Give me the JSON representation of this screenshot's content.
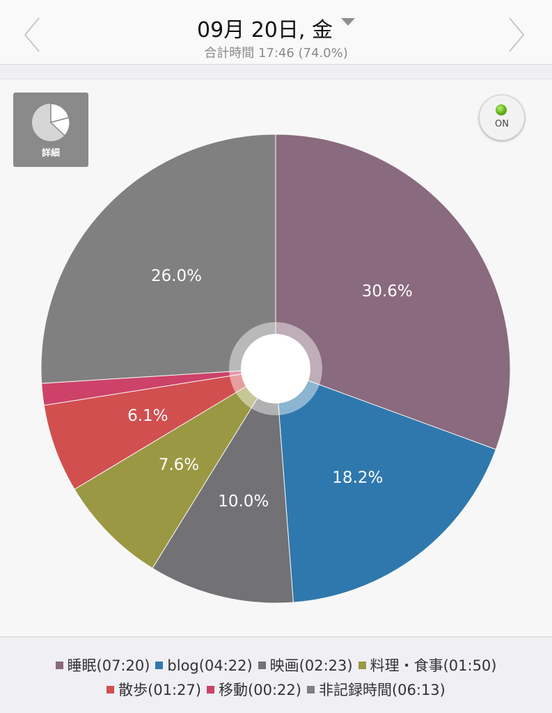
{
  "header": {
    "date": "09月 20日, 金",
    "total": "合計時間 17:46 (74.0%)"
  },
  "detail_button": {
    "label": "詳細"
  },
  "toggle": {
    "label": "ON"
  },
  "chart_data": {
    "type": "pie",
    "slices": [
      {
        "name": "睡眠",
        "duration": "07:20",
        "percent": 30.6,
        "label": "30.6%",
        "color": "#8a6a7e"
      },
      {
        "name": "blog",
        "duration": "04:22",
        "percent": 18.2,
        "label": "18.2%",
        "color": "#2f78ad"
      },
      {
        "name": "映画",
        "duration": "02:23",
        "percent": 10.0,
        "label": "10.0%",
        "color": "#727276"
      },
      {
        "name": "料理・食事",
        "duration": "01:50",
        "percent": 7.6,
        "label": "7.6%",
        "color": "#9a9843"
      },
      {
        "name": "散歩",
        "duration": "01:27",
        "percent": 6.1,
        "label": "6.1%",
        "color": "#d24f50"
      },
      {
        "name": "移動",
        "duration": "00:22",
        "percent": 1.5,
        "label": "",
        "color": "#cd4268"
      },
      {
        "name": "非記録時間",
        "duration": "06:13",
        "percent": 26.0,
        "label": "26.0%",
        "color": "#808080"
      }
    ]
  },
  "legend": {
    "items": [
      {
        "text": "睡眠(07:20)",
        "color": "#8a6a7e"
      },
      {
        "text": "blog(04:22)",
        "color": "#2f78ad"
      },
      {
        "text": "映画(02:23)",
        "color": "#727276"
      },
      {
        "text": "料理・食事(01:50)",
        "color": "#9a9843"
      },
      {
        "text": "散歩(01:27)",
        "color": "#d24f50"
      },
      {
        "text": "移動(00:22)",
        "color": "#cd4268"
      },
      {
        "text": "非記録時間(06:13)",
        "color": "#808080"
      }
    ]
  }
}
